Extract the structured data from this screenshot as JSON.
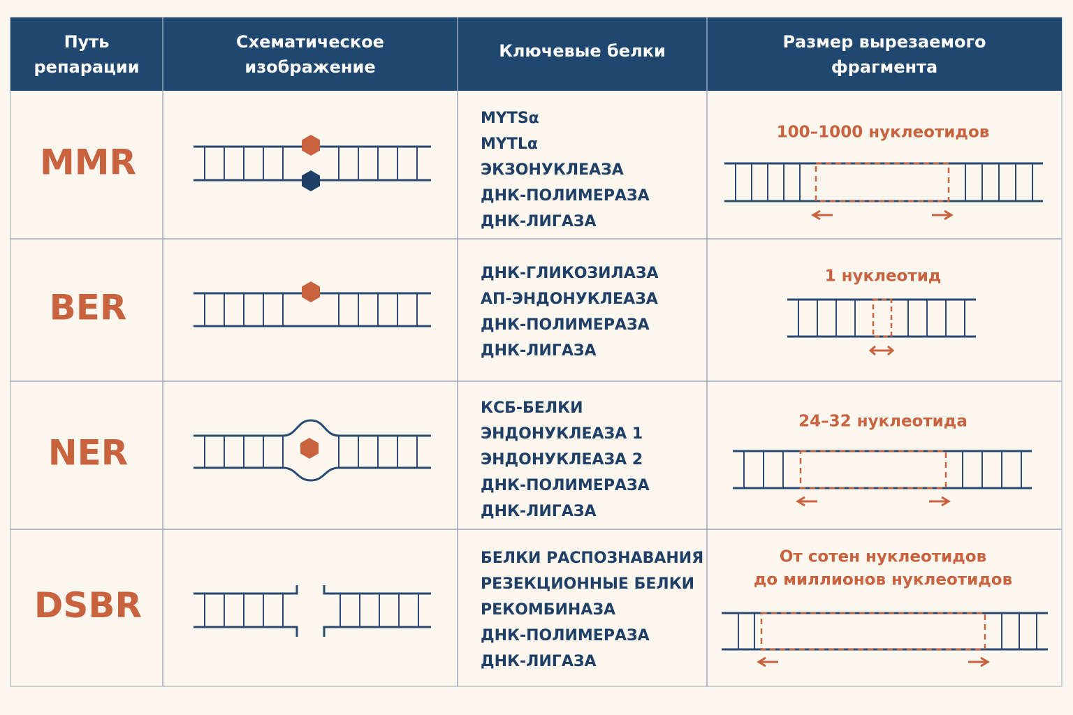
{
  "table": {
    "headers": [
      "Путь репарации",
      "Схематическое изображение",
      "Ключевые белки",
      "Размер вырезаемого фрагмента"
    ],
    "rows": [
      {
        "pathway": "MMR",
        "proteins": [
          "MYTSα",
          "MYTLα",
          "ЭКЗОНУКЛЕАЗА",
          "ДНК-ПОЛИМЕРАЗА",
          "ДНК-ЛИГАЗА"
        ],
        "size": [
          "100–1000 нуклеотидов"
        ]
      },
      {
        "pathway": "BER",
        "proteins": [
          "ДНК-ГЛИКОЗИЛАЗА",
          "АП-ЭНДОНУКЛЕАЗА",
          "ДНК-ПОЛИМЕРАЗА",
          "ДНК-ЛИГАЗА"
        ],
        "size": [
          "1 нуклеотид"
        ]
      },
      {
        "pathway": "NER",
        "proteins": [
          "КСБ-БЕЛКИ",
          "ЭНДОНУКЛЕАЗА 1",
          "ЭНДОНУКЛЕАЗА 2",
          "ДНК-ПОЛИМЕРАЗА",
          "ДНК-ЛИГАЗА"
        ],
        "size": [
          "24–32 нуклеотида"
        ]
      },
      {
        "pathway": "DSBR",
        "proteins": [
          "БЕЛКИ РАСПОЗНАВАНИЯ",
          "РЕЗЕКЦИОННЫЕ БЕЛКИ",
          "РЕКОМБИНАЗА",
          "ДНК-ПОЛИМЕРАЗА",
          "ДНК-ЛИГАЗА"
        ],
        "size": [
          "От сотен нуклеотидов",
          "до миллионов нуклеотидов"
        ]
      }
    ]
  }
}
